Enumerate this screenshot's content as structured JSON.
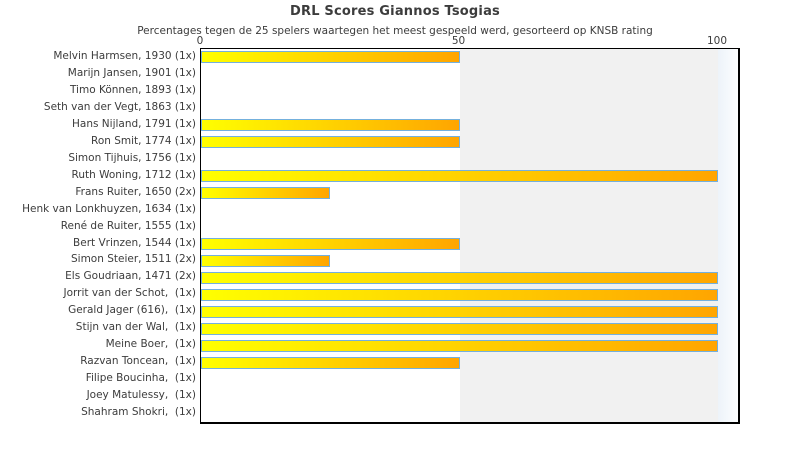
{
  "chart_data": {
    "type": "bar",
    "orientation": "horizontal",
    "title": "DRL Scores Giannos Tsogias",
    "subtitle": "Percentages tegen de 25 spelers waartegen het meest gespeeld werd, gesorteerd op KNSB rating",
    "xlabel": "",
    "ylabel": "",
    "xlim": [
      0,
      104
    ],
    "xticks": [
      "0",
      "50",
      "100"
    ],
    "xtick_values": [
      0,
      50,
      100
    ],
    "grid": false,
    "legend": null,
    "bands": [
      {
        "from": 50,
        "to": 100,
        "color": "#f1f1f1"
      }
    ],
    "categories": [
      "Melvin Harmsen, 1930 (1x)",
      "Marijn Jansen, 1901 (1x)",
      "Timo Können, 1893 (1x)",
      "Seth van der Vegt, 1863 (1x)",
      "Hans Nijland, 1791 (1x)",
      "Ron Smit, 1774 (1x)",
      "Simon Tijhuis, 1756 (1x)",
      "Ruth Woning, 1712 (1x)",
      "Frans Ruiter, 1650 (2x)",
      "Henk van Lonkhuyzen, 1634 (1x)",
      "René de Ruiter, 1555 (1x)",
      "Bert Vrinzen, 1544 (1x)",
      "Simon Steier, 1511 (2x)",
      "Els Goudriaan, 1471 (2x)",
      "Jorrit van der Schot,  (1x)",
      "Gerald Jager (616),  (1x)",
      "Stijn van der Wal,  (1x)",
      "Meine Boer,  (1x)",
      "Razvan Toncean,  (1x)",
      "Filipe Boucinha,  (1x)",
      "Joey Matulessy,  (1x)",
      "Shahram Shokri,  (1x)"
    ],
    "values": [
      50,
      0,
      0,
      0,
      50,
      50,
      0,
      100,
      25,
      0,
      0,
      50,
      25,
      100,
      100,
      100,
      100,
      100,
      50,
      0,
      0,
      0
    ],
    "colors": {
      "bar_gradient_start": "#ffff00",
      "bar_gradient_end": "#ffa500",
      "bar_border": "#74b0dd",
      "band_gray": "#f1f1f1",
      "text": "#3c3c3c",
      "plot_border": "#000000"
    }
  }
}
